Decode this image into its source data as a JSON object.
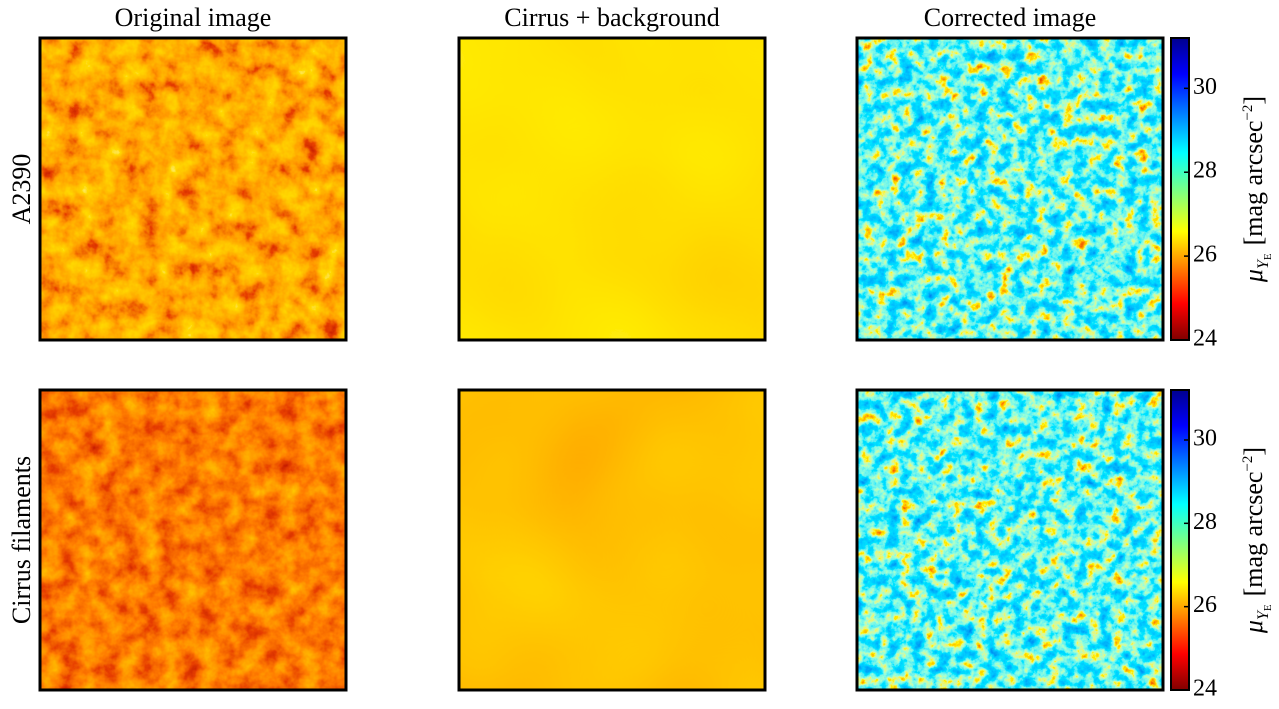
{
  "columns": [
    "Original image",
    "Cirrus + background",
    "Corrected image"
  ],
  "rows": [
    "A2390",
    "Cirrus filaments"
  ],
  "colorbar": {
    "lim": [
      24,
      31.2
    ],
    "ticks": [
      24,
      26,
      28,
      30
    ],
    "label": {
      "symbol": "μ",
      "sub": "Y",
      "subsub": "E",
      "unit": "[mag arcsec",
      "exp": "−2",
      "close": "]"
    }
  }
}
